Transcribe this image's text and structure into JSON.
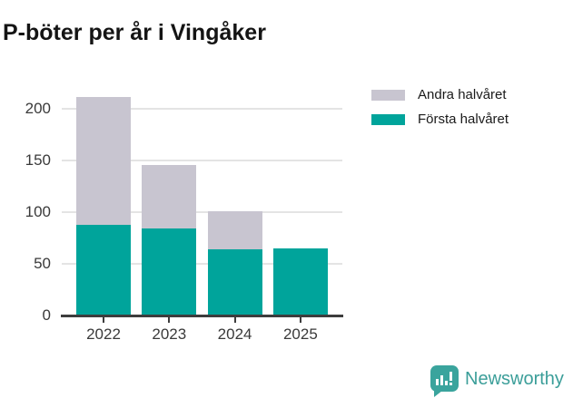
{
  "chart_data": {
    "type": "bar",
    "stacked": true,
    "title": "P-böter per år i Vingåker",
    "xlabel": "",
    "ylabel": "",
    "categories": [
      "2022",
      "2023",
      "2024",
      "2025"
    ],
    "series": [
      {
        "name": "Första halvåret",
        "color": "#00a49b",
        "values": [
          88,
          84,
          64,
          65
        ]
      },
      {
        "name": "Andra halvåret",
        "color": "#c8c5d0",
        "values": [
          123,
          61,
          37,
          0
        ]
      }
    ],
    "totals": [
      211,
      145,
      101,
      65
    ],
    "yticks": [
      0,
      50,
      100,
      150,
      200
    ],
    "ylim": [
      0,
      226
    ],
    "grid": true,
    "grid_color": "#e4e4e4",
    "axis_color": "#3d3d3d",
    "legend_position": "top-right",
    "legend_order": [
      "Andra halvåret",
      "Första halvåret"
    ]
  },
  "footer": {
    "brand": "Newsworthy",
    "logo_color": "#3aa49d",
    "wordmark_color": "#3b9e99"
  }
}
